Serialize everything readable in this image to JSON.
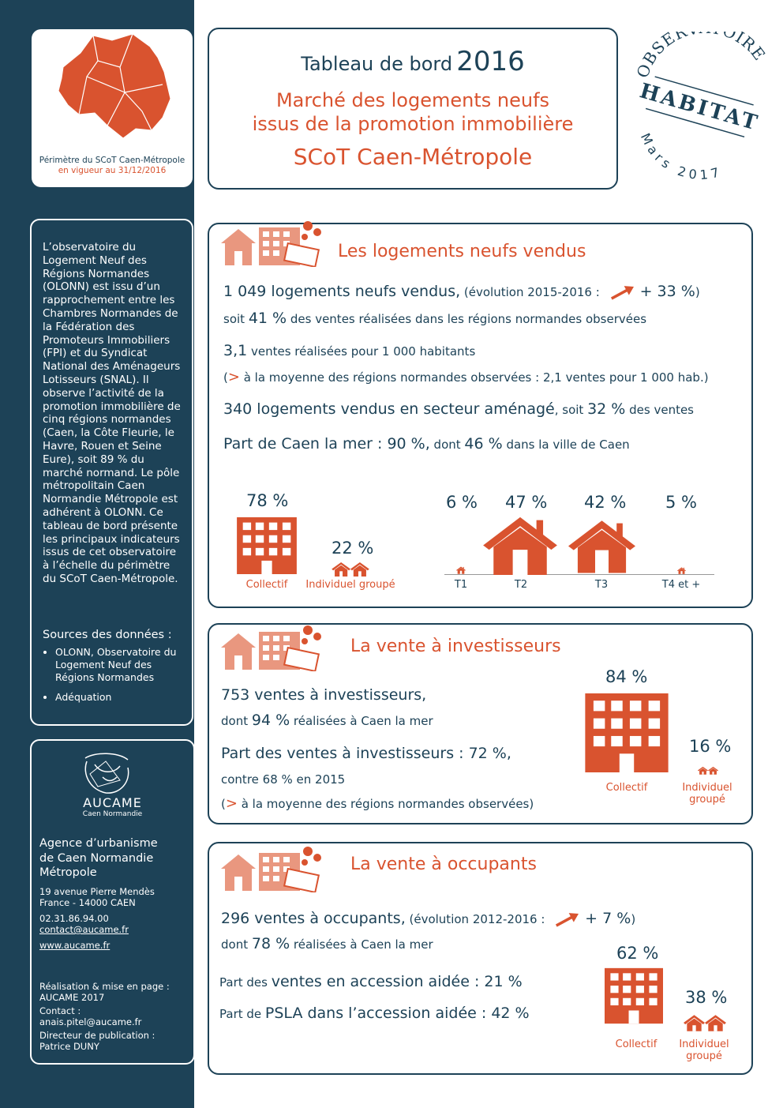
{
  "sidebar": {
    "map_caption": [
      "Périmètre du SCoT Caen-Métropole",
      "en vigueur au 31/12/2016"
    ],
    "intro": "L’observatoire du Logement Neuf des Régions Normandes (OLONN) est issu d’un rapprochement entre les Chambres Normandes de la Fédération des Promoteurs Immobiliers (FPI) et du Syndicat National des Aménageurs Lotisseurs (SNAL). Il observe l’activité de la promotion immobilière de cinq régions normandes (Caen, la Côte Fleurie, le Havre, Rouen et Seine Eure), soit 89 % du marché normand. Le pôle métropolitain Caen Normandie Métropole est adhérent à OLONN. Ce tableau de bord présente les principaux indicateurs issus de cet observatoire à l’échelle du périmètre du SCoT Caen-Métropole.",
    "sources_title": "Sources des données :",
    "sources": [
      "OLONN, Observatoire du Logement Neuf des Régions Normandes",
      "Adéquation"
    ],
    "logo": {
      "name": "AUCAME",
      "place": "Caen Normandie"
    },
    "agency": "Agence d’urbanisme de Caen Normandie Métropole",
    "address": [
      "19 avenue Pierre Mendès France - 14000 CAEN",
      "02.31.86.94.00",
      "contact@aucame.fr",
      "www.aucame.fr"
    ],
    "credits": [
      "Réalisation & mise en page : AUCAME 2017",
      "Contact : anais.pitel@aucame.fr",
      "Directeur de publication : Patrice DUNY"
    ]
  },
  "header": {
    "title": "Tableau de bord",
    "year": "2016",
    "subtitle": [
      "Marché des logements neufs",
      "issus de la promotion immobilière"
    ],
    "territory": "SCoT Caen-Métropole"
  },
  "stamp": {
    "top": "OBSERVATOIRE",
    "middle": "HABITAT",
    "bottom": "Mars 2017"
  },
  "sections": [
    {
      "title": "Les logements neufs vendus",
      "lines": [
        [
          "1 049 logements neufs vendus,",
          " (évolution 2015-2016 : ",
          "+ 33 %",
          ")"
        ],
        [
          "soit ",
          "41 %",
          " des ventes  réalisées dans les régions normandes observées"
        ],
        [
          "3,1",
          " ventes réalisées pour 1 000 habitants"
        ],
        [
          "(",
          ">",
          " à la moyenne des régions normandes observées : 2,1 ventes pour 1 000 hab.)"
        ],
        [
          "340 logements vendus en secteur aménagé",
          ", soit ",
          "32 %",
          " des ventes"
        ],
        [
          "Part de Caen la mer : 90 %,",
          " dont ",
          "46 %",
          " dans la ville de Caen"
        ]
      ],
      "split": [
        {
          "label": "Collectif",
          "value": "78 %"
        },
        {
          "label": "Individuel groupé",
          "value": "22 %"
        }
      ],
      "sizes": [
        {
          "label": "T1",
          "value": "6 %"
        },
        {
          "label": "T2",
          "value": "47 %"
        },
        {
          "label": "T3",
          "value": "42 %"
        },
        {
          "label": "T4 et +",
          "value": "5 %"
        }
      ]
    },
    {
      "title": "La vente à investisseurs",
      "lines": [
        [
          "753 ventes à investisseurs,"
        ],
        [
          "dont ",
          "94 %",
          " réalisées à Caen la mer"
        ],
        [
          "Part des ventes à investisseurs : 72 %,"
        ],
        [
          "contre 68 % en 2015"
        ],
        [
          "(",
          ">",
          " à la moyenne des régions normandes observées)"
        ]
      ],
      "split": [
        {
          "label": "Collectif",
          "value": "84 %"
        },
        {
          "label": "Individuel groupé",
          "value": "16 %"
        }
      ]
    },
    {
      "title": "La vente à occupants",
      "lines": [
        [
          "296 ventes à occupants,",
          " (évolution 2012-2016 : ",
          "+ 7 %",
          ")"
        ],
        [
          "dont ",
          "78 %",
          " réalisées à Caen la mer"
        ],
        [
          "Part des ",
          "ventes en accession aidée : 21 %"
        ],
        [
          "Part de ",
          "PSLA dans l’accession aidée : 42 %"
        ]
      ],
      "split": [
        {
          "label": "Collectif",
          "value": "62 %"
        },
        {
          "label": "Individuel groupé",
          "value": "38 %"
        }
      ]
    }
  ]
}
